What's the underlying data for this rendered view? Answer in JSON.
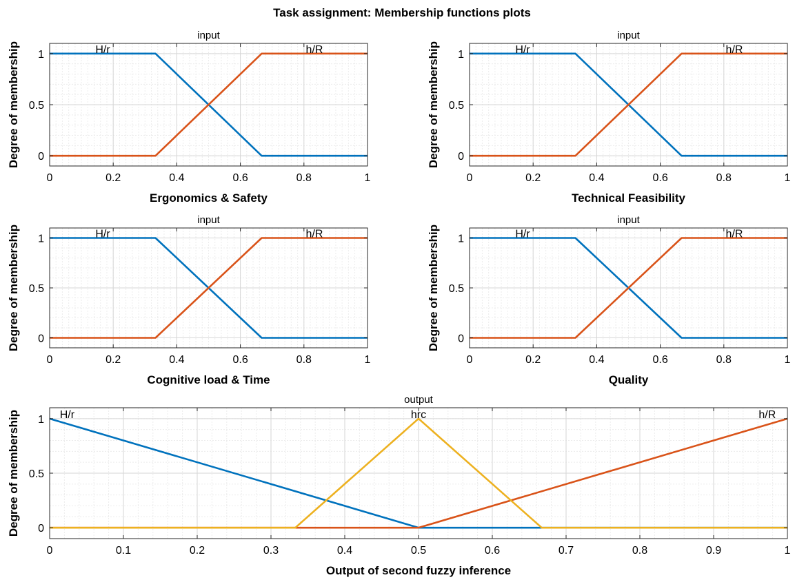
{
  "figure": {
    "title": "Task assignment: Membership functions plots"
  },
  "colors": {
    "blue": "#0072BD",
    "orange": "#D95319",
    "yellow": "#EDB120"
  },
  "chart_data": [
    {
      "type": "line",
      "title": "input",
      "xlabel": "Ergonomics & Safety",
      "ylabel": "Degree of membership",
      "xlim": [
        0,
        1
      ],
      "ylim": [
        -0.1,
        1.1
      ],
      "xticks": [
        0,
        0.2,
        0.4,
        0.6,
        0.8,
        1
      ],
      "xtick_labels": [
        "0",
        "0.2",
        "0.4",
        "0.6",
        "0.8",
        "1"
      ],
      "yticks": [
        0,
        0.5,
        1
      ],
      "ytick_labels": [
        "0",
        "0.5",
        "1"
      ],
      "grid": true,
      "series": [
        {
          "name": "H/r",
          "color": "#0072BD",
          "x": [
            0,
            0.333,
            0.667,
            1
          ],
          "y": [
            1,
            1,
            0,
            0
          ]
        },
        {
          "name": "h/R",
          "color": "#D95319",
          "x": [
            0,
            0.333,
            0.667,
            1
          ],
          "y": [
            0,
            0,
            1,
            1
          ]
        }
      ],
      "labels": [
        {
          "text": "H/r",
          "x": 0.167,
          "y": 1
        },
        {
          "text": "h/R",
          "x": 0.833,
          "y": 1
        }
      ]
    },
    {
      "type": "line",
      "title": "input",
      "xlabel": "Technical Feasibility",
      "ylabel": "Degree of membership",
      "xlim": [
        0,
        1
      ],
      "ylim": [
        -0.1,
        1.1
      ],
      "xticks": [
        0,
        0.2,
        0.4,
        0.6,
        0.8,
        1
      ],
      "xtick_labels": [
        "0",
        "0.2",
        "0.4",
        "0.6",
        "0.8",
        "1"
      ],
      "yticks": [
        0,
        0.5,
        1
      ],
      "ytick_labels": [
        "0",
        "0.5",
        "1"
      ],
      "grid": true,
      "series": [
        {
          "name": "H/r",
          "color": "#0072BD",
          "x": [
            0,
            0.333,
            0.667,
            1
          ],
          "y": [
            1,
            1,
            0,
            0
          ]
        },
        {
          "name": "h/R",
          "color": "#D95319",
          "x": [
            0,
            0.333,
            0.667,
            1
          ],
          "y": [
            0,
            0,
            1,
            1
          ]
        }
      ],
      "labels": [
        {
          "text": "H/r",
          "x": 0.167,
          "y": 1
        },
        {
          "text": "h/R",
          "x": 0.833,
          "y": 1
        }
      ]
    },
    {
      "type": "line",
      "title": "input",
      "xlabel": "Cognitive load & Time",
      "ylabel": "Degree of membership",
      "xlim": [
        0,
        1
      ],
      "ylim": [
        -0.1,
        1.1
      ],
      "xticks": [
        0,
        0.2,
        0.4,
        0.6,
        0.8,
        1
      ],
      "xtick_labels": [
        "0",
        "0.2",
        "0.4",
        "0.6",
        "0.8",
        "1"
      ],
      "yticks": [
        0,
        0.5,
        1
      ],
      "ytick_labels": [
        "0",
        "0.5",
        "1"
      ],
      "grid": true,
      "series": [
        {
          "name": "H/r",
          "color": "#0072BD",
          "x": [
            0,
            0.333,
            0.667,
            1
          ],
          "y": [
            1,
            1,
            0,
            0
          ]
        },
        {
          "name": "h/R",
          "color": "#D95319",
          "x": [
            0,
            0.333,
            0.667,
            1
          ],
          "y": [
            0,
            0,
            1,
            1
          ]
        }
      ],
      "labels": [
        {
          "text": "H/r",
          "x": 0.167,
          "y": 1
        },
        {
          "text": "h/R",
          "x": 0.833,
          "y": 1
        }
      ]
    },
    {
      "type": "line",
      "title": "input",
      "xlabel": "Quality",
      "ylabel": "Degree of membership",
      "xlim": [
        0,
        1
      ],
      "ylim": [
        -0.1,
        1.1
      ],
      "xticks": [
        0,
        0.2,
        0.4,
        0.6,
        0.8,
        1
      ],
      "xtick_labels": [
        "0",
        "0.2",
        "0.4",
        "0.6",
        "0.8",
        "1"
      ],
      "yticks": [
        0,
        0.5,
        1
      ],
      "ytick_labels": [
        "0",
        "0.5",
        "1"
      ],
      "grid": true,
      "series": [
        {
          "name": "H/r",
          "color": "#0072BD",
          "x": [
            0,
            0.333,
            0.667,
            1
          ],
          "y": [
            1,
            1,
            0,
            0
          ]
        },
        {
          "name": "h/R",
          "color": "#D95319",
          "x": [
            0,
            0.333,
            0.667,
            1
          ],
          "y": [
            0,
            0,
            1,
            1
          ]
        }
      ],
      "labels": [
        {
          "text": "H/r",
          "x": 0.167,
          "y": 1
        },
        {
          "text": "h/R",
          "x": 0.833,
          "y": 1
        }
      ]
    },
    {
      "type": "line",
      "title": "output",
      "xlabel": "Output of second fuzzy inference",
      "ylabel": "Degree of membership",
      "xlim": [
        0,
        1
      ],
      "ylim": [
        -0.1,
        1.1
      ],
      "xticks": [
        0,
        0.1,
        0.2,
        0.3,
        0.4,
        0.5,
        0.6,
        0.7,
        0.8,
        0.9,
        1
      ],
      "xtick_labels": [
        "0",
        "0.1",
        "0.2",
        "0.3",
        "0.4",
        "0.5",
        "0.6",
        "0.7",
        "0.8",
        "0.9",
        "1"
      ],
      "yticks": [
        0,
        0.5,
        1
      ],
      "ytick_labels": [
        "0",
        "0.5",
        "1"
      ],
      "grid": true,
      "series": [
        {
          "name": "H/r",
          "color": "#0072BD",
          "x": [
            0,
            0.5,
            1
          ],
          "y": [
            1,
            0,
            0
          ]
        },
        {
          "name": "h/R",
          "color": "#D95319",
          "x": [
            0,
            0.5,
            1
          ],
          "y": [
            0,
            0,
            1
          ]
        },
        {
          "name": "hrc",
          "color": "#EDB120",
          "x": [
            0,
            0.333,
            0.5,
            0.667,
            1
          ],
          "y": [
            0,
            0,
            1,
            0,
            0
          ]
        }
      ],
      "labels": [
        {
          "text": "H/r",
          "x": 0.01,
          "y": 1
        },
        {
          "text": "hrc",
          "x": 0.5,
          "y": 1
        },
        {
          "text": "h/R",
          "x": 0.99,
          "y": 1
        }
      ]
    }
  ]
}
